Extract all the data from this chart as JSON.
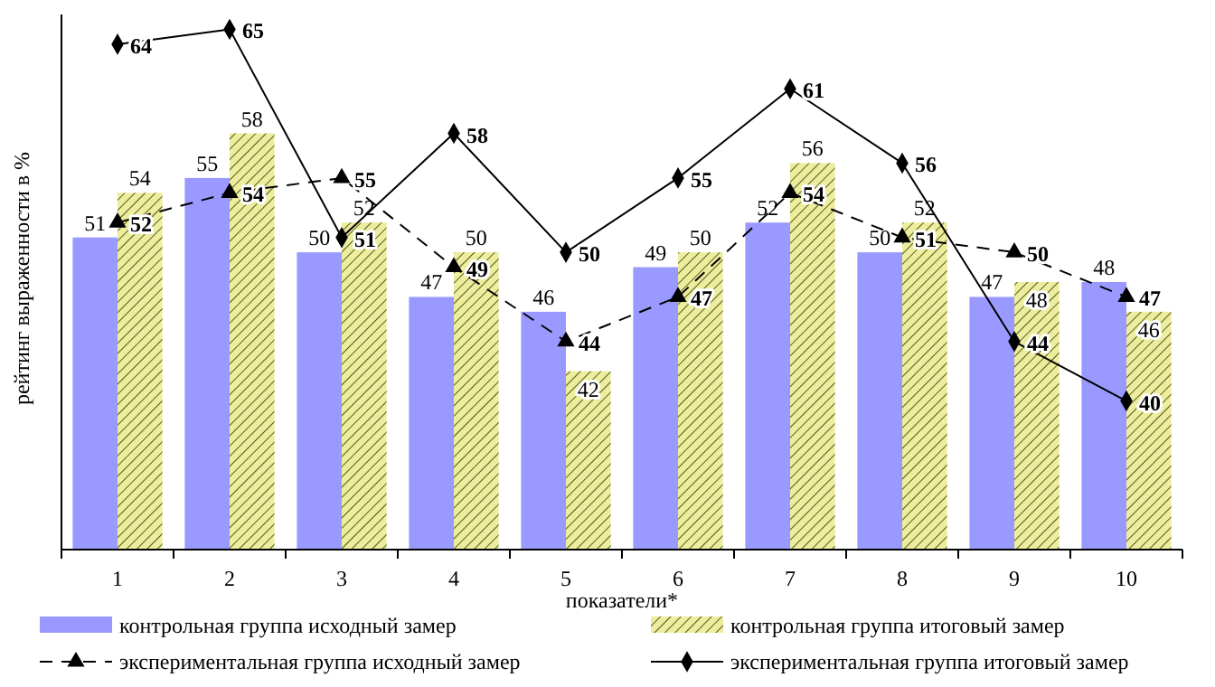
{
  "chart_data": {
    "type": "bar",
    "xlabel": "показатели*",
    "ylabel": "рейтинг выраженности в %",
    "categories": [
      "1",
      "2",
      "3",
      "4",
      "5",
      "6",
      "7",
      "8",
      "9",
      "10"
    ],
    "ylim": [
      30,
      66
    ],
    "tick_labels": "x",
    "data_labels": true,
    "legend": "bottom",
    "series": [
      {
        "name": "контрольная группа исходный замер",
        "color": "#9999ff",
        "values": [
          51,
          55,
          50,
          47,
          46,
          49,
          52,
          50,
          47,
          48
        ]
      },
      {
        "name": "контрольная группа итоговый замер",
        "color": "#eded9e",
        "values": [
          54,
          58,
          52,
          50,
          42,
          50,
          56,
          52,
          48,
          46
        ]
      },
      {
        "name": "экспериментальная группа исходный замер",
        "type": "line",
        "color": "#000000",
        "marker": "triangle",
        "line_style": "dashed",
        "values": [
          52,
          54,
          55,
          49,
          44,
          47,
          54,
          51,
          50,
          47
        ]
      },
      {
        "name": "экспериментальная группа итоговый замер",
        "type": "line",
        "color": "#000000",
        "marker": "diamond",
        "line_style": "solid",
        "values": [
          64,
          65,
          51,
          58,
          50,
          55,
          61,
          56,
          44,
          40
        ]
      }
    ]
  }
}
